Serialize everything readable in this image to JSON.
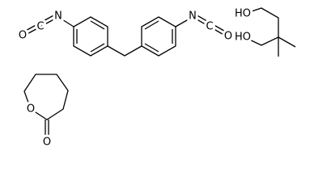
{
  "atoms": [
    {
      "label": "O"
    },
    {
      "label": "C"
    },
    {
      "label": "N"
    },
    {
      "label": "N"
    },
    {
      "label": "C"
    },
    {
      "label": "O"
    },
    {
      "label": "HO"
    },
    {
      "label": "HO"
    },
    {
      "label": "O"
    },
    {
      "label": "O"
    }
  ]
}
